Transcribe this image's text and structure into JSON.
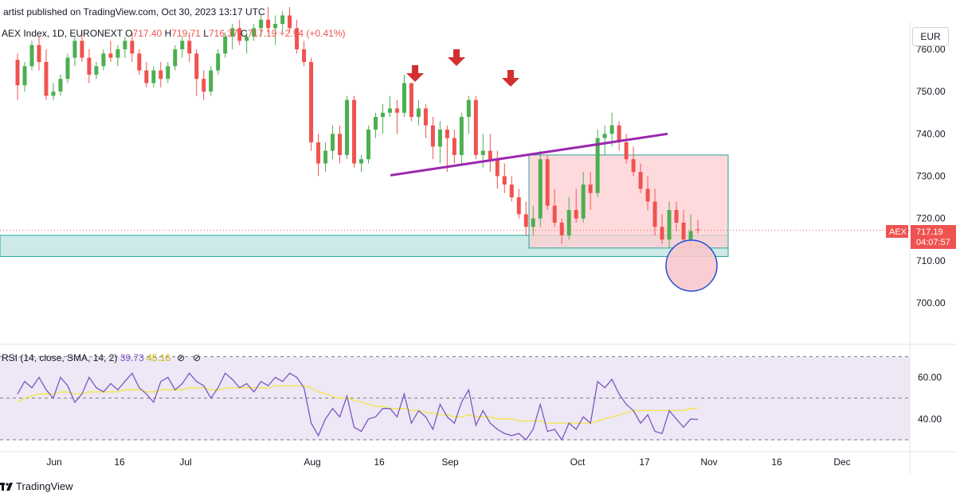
{
  "header": {
    "published": "artist published on TradingView.com, Oct 30, 2023 13:17 UTC",
    "symbol": "AEX Index, 1D, EURONEXT",
    "o_label": "O",
    "o_value": "717.40",
    "h_label": "H",
    "h_value": "719.71",
    "l_label": "L",
    "l_value": "716.37",
    "c_label": "C",
    "c_value": "717.19",
    "change": "+2.94 (+0.41%)"
  },
  "currency_button": "EUR",
  "price_tag": {
    "symbol": "AEX",
    "price": "717.19",
    "countdown": "04:07:57"
  },
  "footer": {
    "brand": "TradingView"
  },
  "colors": {
    "up": "#4caf50",
    "down": "#ef5350",
    "trendline": "#9c27b0",
    "rsi": "#7e57c2",
    "rsi_ma": "#f5e642",
    "zone_green": "#b2dfdb",
    "zone_red": "#ffcdd2",
    "circle": "#1e4fd8",
    "arrow": "#d32f2f"
  },
  "chart_data": [
    {
      "type": "candlestick",
      "y_axis": {
        "ticks": [
          "700.00",
          "710.00",
          "720.00",
          "730.00",
          "740.00",
          "750.00",
          "760.00"
        ],
        "ylim": [
          694,
          764
        ]
      },
      "x_axis": {
        "ticks": [
          "Jun",
          "16",
          "Jul",
          "Aug",
          "16",
          "Sep",
          "Oct",
          "17",
          "Nov",
          "16",
          "Dec"
        ]
      },
      "candles": [
        [
          757.5,
          759,
          748,
          751.5
        ],
        [
          751.5,
          757,
          750,
          756
        ],
        [
          756,
          762,
          755,
          761
        ],
        [
          761,
          763,
          755,
          757
        ],
        [
          757,
          760,
          748,
          749
        ],
        [
          749,
          752,
          748,
          750
        ],
        [
          750,
          754,
          749,
          753
        ],
        [
          753,
          759,
          752,
          758
        ],
        [
          758,
          763,
          756,
          762
        ],
        [
          762,
          764,
          757,
          758
        ],
        [
          758,
          760,
          752,
          754
        ],
        [
          754,
          757,
          753,
          756
        ],
        [
          756,
          760,
          755,
          759
        ],
        [
          759,
          762,
          757,
          758
        ],
        [
          758,
          761,
          756,
          760
        ],
        [
          760,
          763,
          758,
          762
        ],
        [
          762,
          764,
          757,
          759
        ],
        [
          759,
          760,
          754,
          755
        ],
        [
          755,
          757,
          751,
          752
        ],
        [
          752,
          756,
          751,
          755
        ],
        [
          755,
          757,
          751,
          753
        ],
        [
          753,
          757,
          752,
          756
        ],
        [
          756,
          761,
          755,
          760
        ],
        [
          760,
          763,
          758,
          762
        ],
        [
          762,
          764,
          757,
          759
        ],
        [
          759,
          760,
          749,
          753
        ],
        [
          753,
          755,
          748,
          750
        ],
        [
          750,
          756,
          749,
          755
        ],
        [
          755,
          760,
          754,
          759
        ],
        [
          759,
          764,
          758,
          763
        ],
        [
          763,
          766,
          760,
          765
        ],
        [
          765,
          767,
          761,
          762
        ],
        [
          762,
          764,
          759,
          763
        ],
        [
          763,
          766,
          762,
          765
        ],
        [
          765,
          768,
          763,
          767
        ],
        [
          767,
          770,
          764,
          765
        ],
        [
          765,
          768,
          761,
          766
        ],
        [
          766,
          769,
          764,
          768
        ],
        [
          768,
          770,
          764,
          765
        ],
        [
          765,
          767,
          759,
          760
        ],
        [
          760,
          762,
          756,
          757
        ],
        [
          757,
          758,
          736,
          738
        ],
        [
          738,
          740,
          730,
          733
        ],
        [
          733,
          738,
          731,
          736
        ],
        [
          736,
          742,
          734,
          740
        ],
        [
          740,
          742,
          733,
          735
        ],
        [
          735,
          749,
          734,
          748
        ],
        [
          748,
          749,
          732,
          733
        ],
        [
          733,
          735,
          731,
          734
        ],
        [
          734,
          742,
          733,
          741
        ],
        [
          741,
          745,
          739,
          744
        ],
        [
          744,
          747,
          740,
          745
        ],
        [
          745,
          749,
          744,
          746
        ],
        [
          746,
          748,
          740,
          745
        ],
        [
          745,
          754,
          744,
          752
        ],
        [
          752,
          752,
          743,
          744
        ],
        [
          744,
          748,
          742,
          746
        ],
        [
          746,
          747,
          739,
          742
        ],
        [
          742,
          744,
          734,
          737
        ],
        [
          737,
          743,
          733,
          741
        ],
        [
          741,
          742,
          731,
          739
        ],
        [
          739,
          741,
          733,
          735
        ],
        [
          735,
          745,
          733,
          744
        ],
        [
          744,
          749,
          740,
          748
        ],
        [
          748,
          749,
          734,
          735
        ],
        [
          735,
          740,
          732,
          736
        ],
        [
          736,
          740,
          731,
          734
        ],
        [
          734,
          736,
          727,
          730
        ],
        [
          730,
          733,
          726,
          728
        ],
        [
          728,
          730,
          724,
          725
        ],
        [
          725,
          727,
          720,
          721
        ],
        [
          721,
          724,
          716,
          718
        ],
        [
          718,
          723,
          716,
          720
        ],
        [
          720,
          736,
          718,
          734
        ],
        [
          734,
          735,
          722,
          723
        ],
        [
          723,
          727,
          718,
          719
        ],
        [
          719,
          720,
          714,
          716
        ],
        [
          716,
          725,
          715,
          722
        ],
        [
          722,
          727,
          719,
          720
        ],
        [
          720,
          731,
          719,
          728
        ],
        [
          728,
          731,
          722,
          726
        ],
        [
          726,
          741,
          725,
          739
        ],
        [
          739,
          742,
          735,
          740
        ],
        [
          740,
          745,
          737,
          742
        ],
        [
          742,
          743,
          736,
          738
        ],
        [
          738,
          740,
          733,
          734
        ],
        [
          734,
          737,
          730,
          731
        ],
        [
          731,
          733,
          726,
          727
        ],
        [
          727,
          730,
          722,
          724
        ],
        [
          724,
          727,
          716,
          718
        ],
        [
          718,
          721,
          714,
          715
        ],
        [
          715,
          724,
          713,
          722
        ],
        [
          722,
          724,
          717,
          719
        ],
        [
          719,
          722,
          714,
          715
        ],
        [
          715,
          721,
          713,
          717
        ],
        [
          717.4,
          719.71,
          716.37,
          717.19
        ]
      ],
      "annotations": {
        "trendline": {
          "from": [
            730.2
          ],
          "to": [
            740
          ]
        },
        "zones": [
          {
            "label": "support",
            "low": 711,
            "high": 716
          },
          {
            "label": "box",
            "low": 713,
            "high": 735
          }
        ],
        "current_price_line": 717.19
      }
    },
    {
      "type": "line",
      "legend": "RSI (14, close, SMA, 14, 2)",
      "legend_values": [
        "39.73",
        "45.16"
      ],
      "y_axis": {
        "ticks": [
          "40.00",
          "60.00"
        ],
        "ylim": [
          25,
          72
        ]
      },
      "levels": [
        70,
        50,
        30
      ],
      "series": [
        {
          "values": [
            52,
            58,
            55,
            60,
            54,
            50,
            60,
            56,
            48,
            52,
            60,
            55,
            53,
            57,
            54,
            58,
            62,
            55,
            52,
            48,
            58,
            60,
            54,
            57,
            62,
            58,
            56,
            50,
            55,
            62,
            59,
            55,
            57,
            53,
            58,
            56,
            60,
            58,
            62,
            60,
            55,
            38,
            32,
            40,
            45,
            41,
            51,
            36,
            34,
            40,
            41,
            45,
            45,
            41,
            52,
            38,
            44,
            41,
            35,
            47,
            41,
            38,
            48,
            54,
            37,
            44,
            38,
            35,
            33,
            32,
            33,
            30,
            35,
            47,
            34,
            35,
            30,
            38,
            35,
            41,
            38,
            58,
            55,
            59,
            52,
            47,
            44,
            38,
            42,
            34,
            33,
            44,
            40,
            36,
            40,
            39.73
          ]
        },
        {
          "values": [
            48,
            50,
            51,
            52,
            52,
            52,
            53,
            53,
            52,
            52,
            53,
            53,
            53,
            53,
            53,
            54,
            54,
            54,
            53,
            53,
            54,
            54,
            54,
            54,
            55,
            55,
            55,
            54,
            54,
            55,
            55,
            55,
            55,
            55,
            55,
            55,
            56,
            56,
            56,
            56,
            56,
            55,
            53,
            52,
            51,
            50,
            50,
            49,
            48,
            47,
            46,
            46,
            45,
            45,
            45,
            44,
            44,
            43,
            43,
            42,
            42,
            41,
            41,
            42,
            41,
            41,
            41,
            40,
            40,
            40,
            39,
            39,
            39,
            39,
            38,
            38,
            38,
            38,
            38,
            38,
            38,
            39,
            40,
            41,
            42,
            43,
            44,
            44,
            44,
            44,
            44,
            44,
            44,
            44,
            45,
            45.16
          ]
        }
      ]
    }
  ]
}
